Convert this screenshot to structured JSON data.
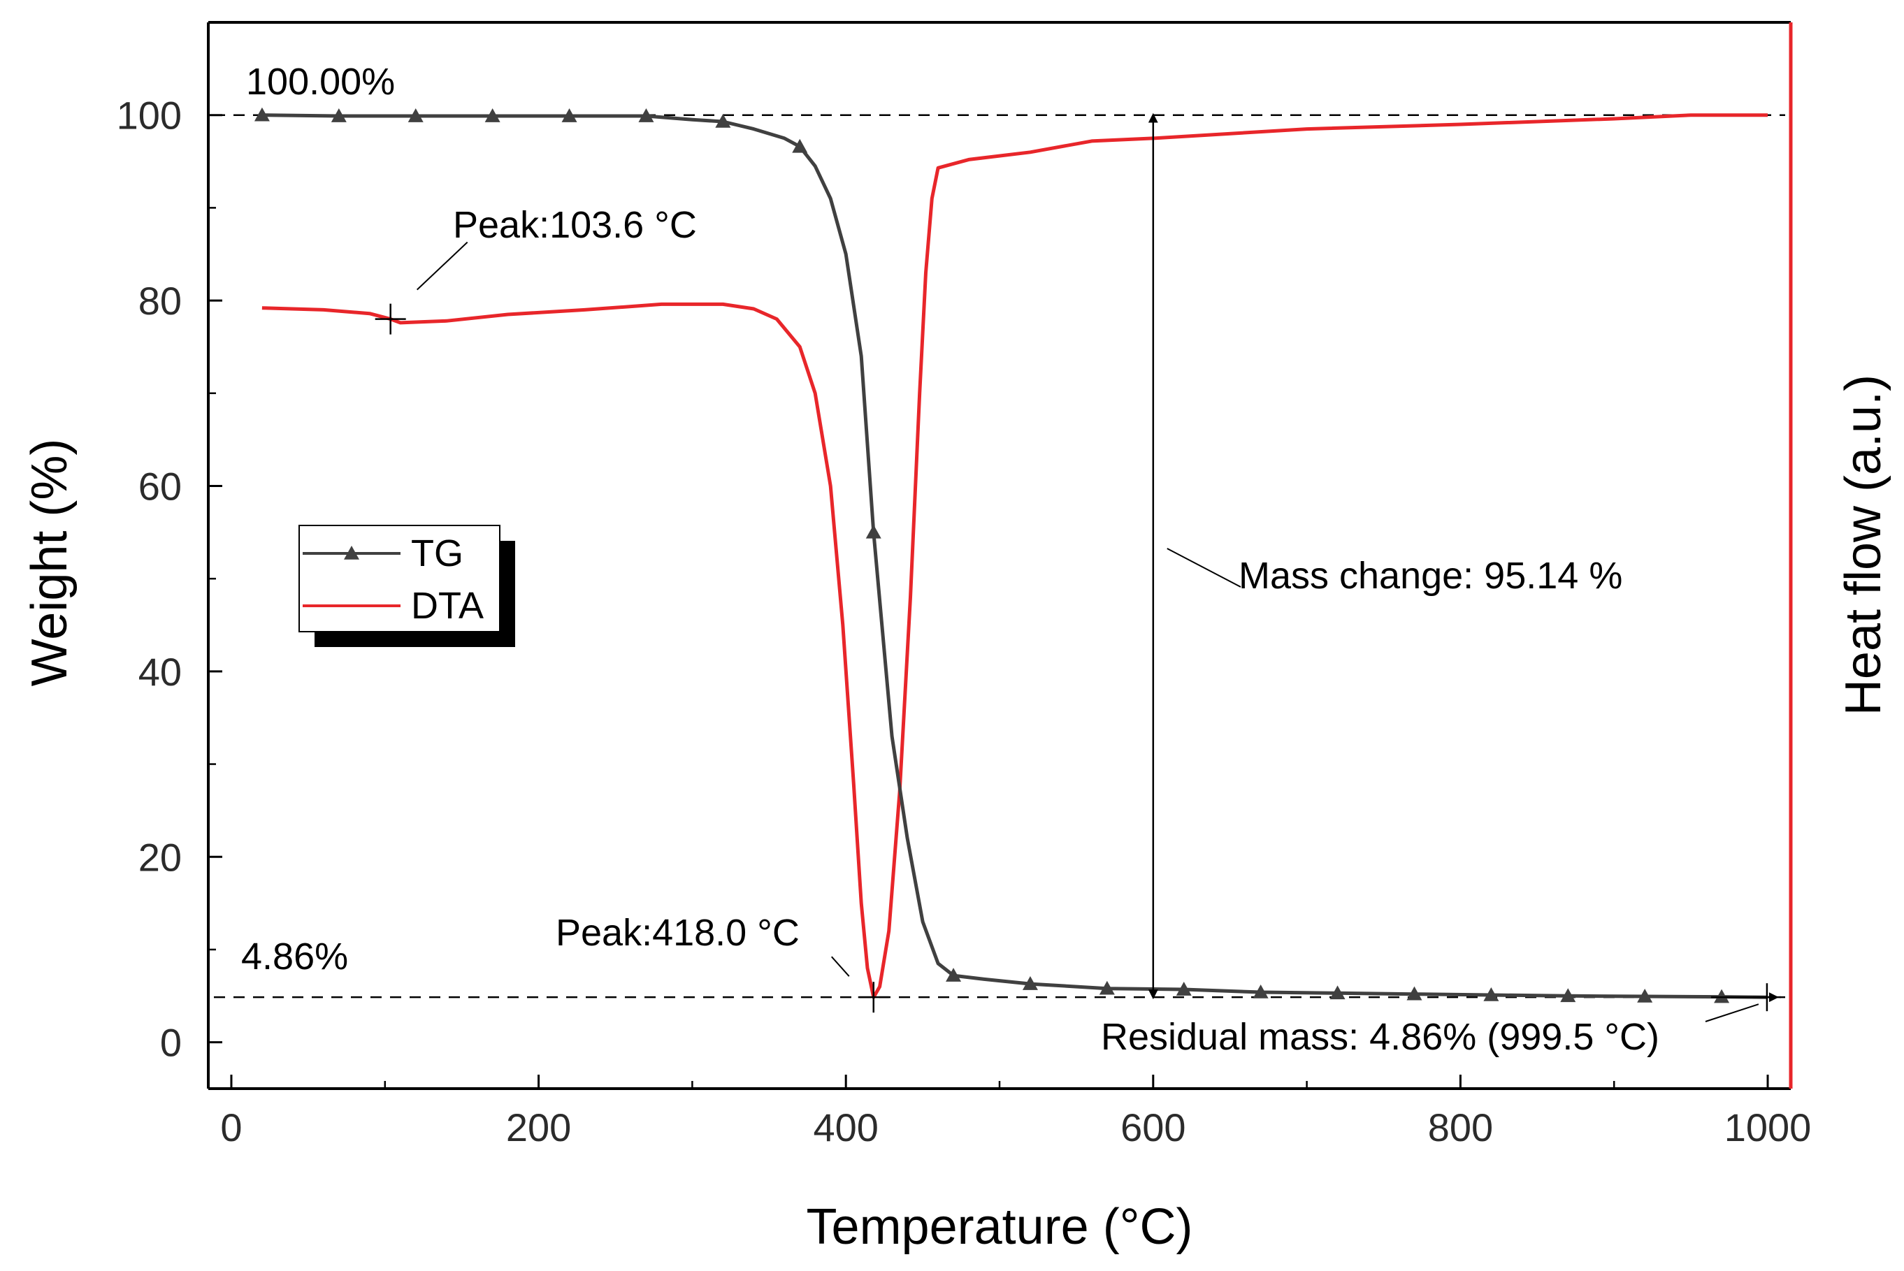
{
  "chart_data": {
    "type": "line",
    "xlabel": "Temperature (°C)",
    "ylabel": "Weight (%)",
    "y2label": "Heat flow (a.u.)",
    "xlim": [
      -15,
      1015
    ],
    "ylim": [
      -5,
      110
    ],
    "xticks": [
      0,
      200,
      400,
      600,
      800,
      1000
    ],
    "yticks": [
      0,
      20,
      40,
      60,
      80,
      100
    ],
    "legend": {
      "position": "left-middle",
      "entries": [
        "TG",
        "DTA"
      ]
    },
    "colors": {
      "tg": "#404040",
      "dta": "#e8262a",
      "axis": "#000000",
      "right_axis": "#e8262a"
    },
    "series": [
      {
        "name": "TG",
        "marker": "triangle",
        "x": [
          20,
          70,
          120,
          170,
          220,
          270,
          300,
          320,
          340,
          360,
          370,
          380,
          390,
          400,
          410,
          418,
          430,
          440,
          450,
          460,
          470,
          490,
          520,
          570,
          620,
          670,
          720,
          770,
          820,
          870,
          920,
          970,
          999.5
        ],
        "y": [
          100,
          99.9,
          99.9,
          99.9,
          99.9,
          99.9,
          99.5,
          99.3,
          98.5,
          97.5,
          96.6,
          94.5,
          91,
          85,
          74,
          55,
          33,
          22,
          13,
          8.5,
          7.2,
          6.8,
          6.3,
          5.8,
          5.7,
          5.4,
          5.3,
          5.2,
          5.1,
          5.0,
          4.95,
          4.9,
          4.86
        ],
        "marker_x": [
          20,
          70,
          120,
          170,
          220,
          270,
          320,
          370,
          418,
          470,
          520,
          570,
          620,
          670,
          720,
          770,
          820,
          870,
          920,
          970
        ]
      },
      {
        "name": "DTA",
        "axis": "right (a.u., plotted on weight scale)",
        "x": [
          20,
          60,
          90,
          103.6,
          110,
          140,
          180,
          230,
          280,
          320,
          340,
          355,
          370,
          380,
          390,
          398,
          405,
          410,
          414,
          418,
          422,
          428,
          435,
          442,
          448,
          452,
          456,
          460,
          480,
          520,
          560,
          600,
          700,
          800,
          900,
          950,
          1000
        ],
        "y": [
          79.2,
          79.0,
          78.6,
          78.0,
          77.6,
          77.8,
          78.5,
          79.0,
          79.6,
          79.6,
          79.1,
          78,
          75,
          70,
          60,
          45,
          28,
          15,
          8,
          4.86,
          6,
          12,
          27,
          48,
          70,
          83,
          91,
          94.3,
          95.2,
          96,
          97.2,
          97.5,
          98.5,
          99.0,
          99.6,
          100,
          100
        ]
      }
    ],
    "reference_lines": [
      {
        "label": "100.00%",
        "y": 100
      },
      {
        "label": "4.86%",
        "y": 4.86
      }
    ],
    "annotations": {
      "peak1": {
        "text": "Peak:103.6 °C",
        "x": 103.6,
        "y": 78.0
      },
      "peak2": {
        "text": "Peak:418.0 °C",
        "x": 418.0,
        "y": 4.86
      },
      "mass_change": {
        "text": "Mass change: 95.14 %",
        "x": 600,
        "y_top": 100,
        "y_bottom": 4.86
      },
      "residual": {
        "text": "Residual mass: 4.86% (999.5 °C)",
        "x": 999.5,
        "y": 4.86
      }
    }
  }
}
